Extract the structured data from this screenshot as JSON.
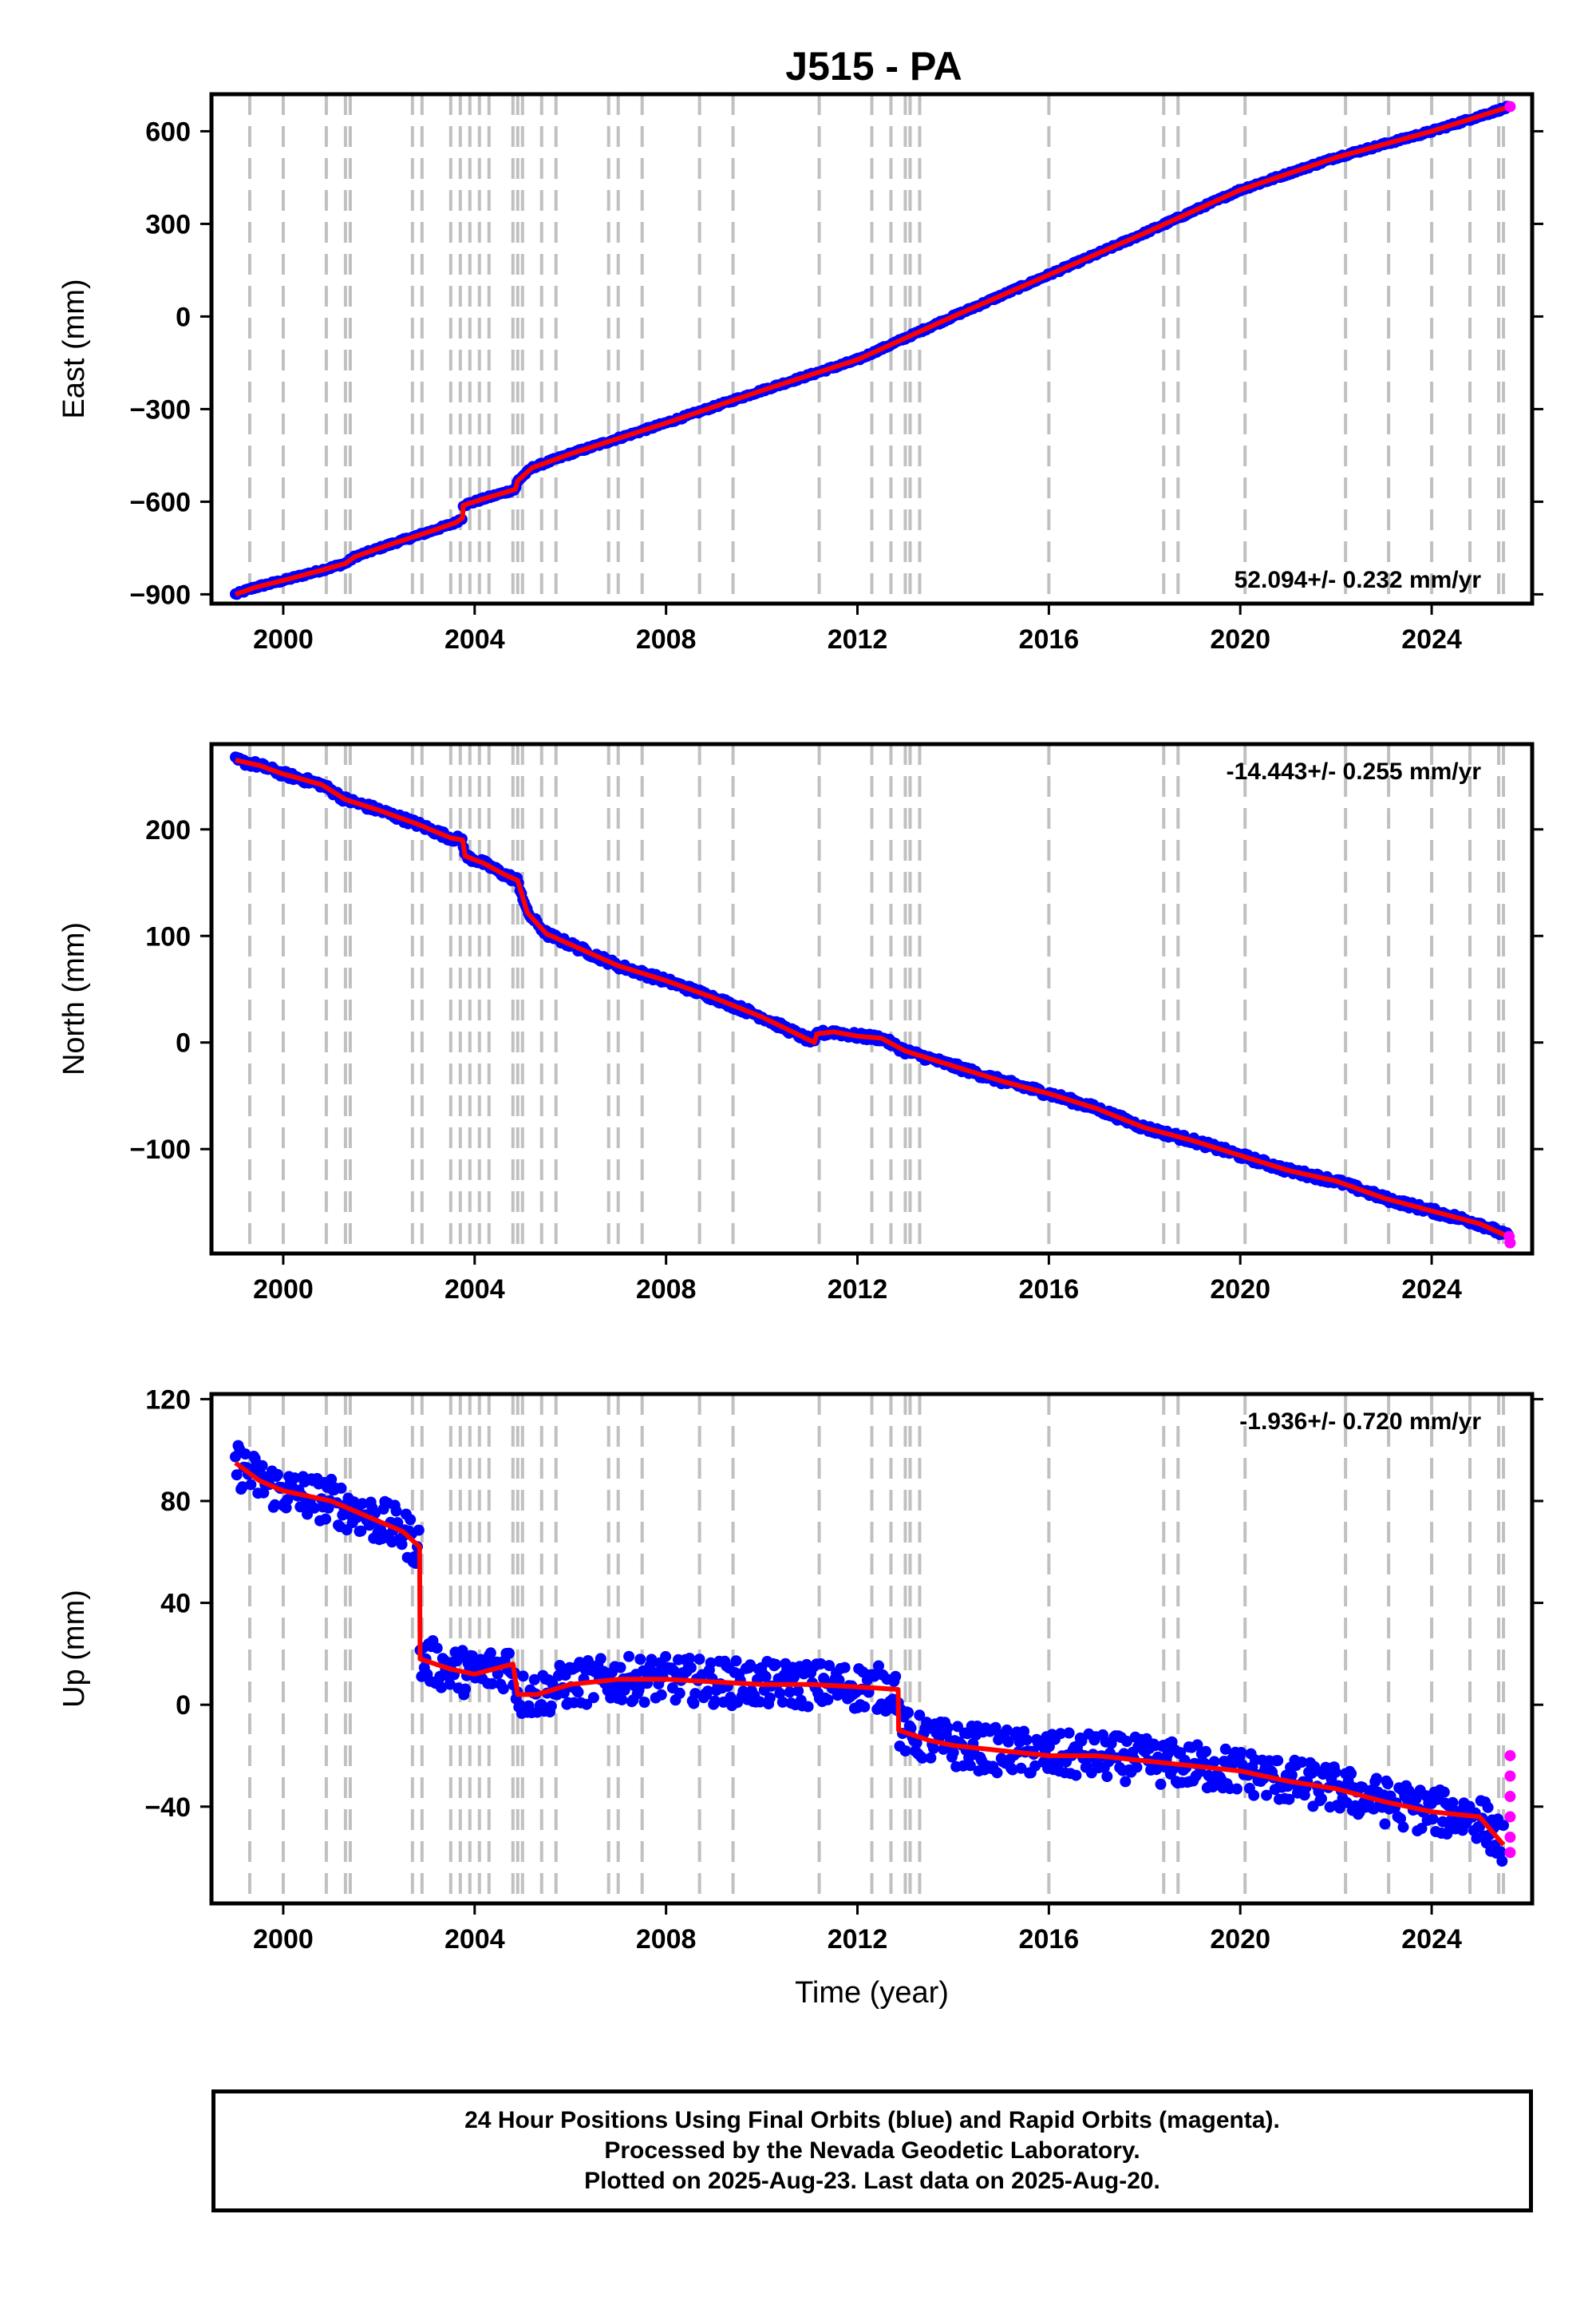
{
  "title": "J515 - PA",
  "footer": {
    "line1": "24 Hour Positions Using Final Orbits (blue) and Rapid Orbits (magenta).",
    "line2": "Processed by the Nevada Geodetic Laboratory.",
    "line3": "Plotted on 2025-Aug-23. Last data on 2025-Aug-20."
  },
  "colors": {
    "final": "#0000ff",
    "rapid": "#ff00ff",
    "model": "#ff0000",
    "event_lines": "#c0c0c0"
  },
  "chart_data": [
    {
      "type": "scatter",
      "panel": "east",
      "title": "J515 - PA",
      "xlabel": "",
      "ylabel": "East (mm)",
      "xlim": [
        1998.5,
        2026.1
      ],
      "ylim": [
        -930,
        720
      ],
      "xticks": [
        2000,
        2004,
        2008,
        2012,
        2016,
        2020,
        2024
      ],
      "yticks": [
        600,
        300,
        0,
        -300,
        -600,
        -900
      ],
      "rate_text": "52.094+/- 0.232 mm/yr",
      "rate_position": "bottom-right",
      "noise": 4,
      "series": [
        {
          "role": "final",
          "x": [
            1999.0,
            1999.4,
            2000.0,
            2000.8,
            2001.3,
            2001.5,
            2002.3,
            2003.0,
            2003.6,
            2003.75,
            2003.76,
            2004.2,
            2004.85,
            2004.9,
            2005.2,
            2006.0,
            2008.0,
            2010.0,
            2012.0,
            2014.0,
            2016.0,
            2018.0,
            2020.0,
            2022.0,
            2024.0,
            2025.6
          ],
          "y": [
            -900,
            -878,
            -855,
            -822,
            -800,
            -778,
            -735,
            -700,
            -668,
            -652,
            -612,
            -590,
            -560,
            -532,
            -490,
            -445,
            -345,
            -240,
            -140,
            0,
            135,
            270,
            410,
            515,
            600,
            678
          ]
        },
        {
          "role": "rapid",
          "x": [
            2025.64
          ],
          "y": [
            680
          ]
        }
      ]
    },
    {
      "type": "scatter",
      "panel": "north",
      "title": "",
      "xlabel": "",
      "ylabel": "North (mm)",
      "xlim": [
        1998.5,
        2026.1
      ],
      "ylim": [
        -198,
        280
      ],
      "xticks": [
        2000,
        2004,
        2008,
        2012,
        2016,
        2020,
        2024
      ],
      "yticks": [
        200,
        100,
        0,
        -100
      ],
      "rate_text": "-14.443+/- 0.255 mm/yr",
      "rate_position": "top-right",
      "noise": 3,
      "series": [
        {
          "role": "final",
          "x": [
            1999.0,
            1999.5,
            2000.0,
            2000.8,
            2001.3,
            2002.0,
            2002.8,
            2003.5,
            2003.75,
            2003.8,
            2004.2,
            2004.6,
            2004.9,
            2005.1,
            2005.5,
            2006.0,
            2007.0,
            2008.0,
            2009.0,
            2010.0,
            2011.1,
            2011.15,
            2011.5,
            2012.0,
            2012.5,
            2013.0,
            2014.0,
            2015.0,
            2016.0,
            2017.0,
            2018.0,
            2019.0,
            2020.0,
            2021.0,
            2022.0,
            2023.0,
            2024.0,
            2025.0,
            2025.6
          ],
          "y": [
            265,
            260,
            252,
            242,
            228,
            218,
            205,
            192,
            190,
            175,
            168,
            158,
            152,
            122,
            102,
            92,
            72,
            58,
            42,
            24,
            0,
            8,
            10,
            6,
            4,
            -8,
            -22,
            -36,
            -48,
            -62,
            -80,
            -92,
            -106,
            -120,
            -130,
            -146,
            -158,
            -170,
            -182
          ]
        },
        {
          "role": "rapid",
          "x": [
            2025.62,
            2025.64
          ],
          "y": [
            -182,
            -188
          ]
        }
      ]
    },
    {
      "type": "scatter",
      "panel": "up",
      "title": "",
      "xlabel": "Time (year)",
      "ylabel": "Up (mm)",
      "xlim": [
        1998.5,
        2026.1
      ],
      "ylim": [
        -78,
        122
      ],
      "xticks": [
        2000,
        2004,
        2008,
        2012,
        2016,
        2020,
        2024
      ],
      "yticks": [
        120,
        80,
        40,
        0,
        -40
      ],
      "rate_text": "-1.936+/- 0.720 mm/yr",
      "rate_position": "top-right",
      "noise": 9,
      "series": [
        {
          "role": "final",
          "x": [
            1999.0,
            1999.5,
            2000.0,
            2000.5,
            2001.0,
            2001.5,
            2002.0,
            2002.5,
            2002.85,
            2002.86,
            2003.5,
            2004.0,
            2004.8,
            2004.9,
            2005.3,
            2006.0,
            2007.0,
            2008.0,
            2009.0,
            2010.0,
            2011.0,
            2012.0,
            2012.85,
            2012.86,
            2013.5,
            2014.0,
            2015.0,
            2016.0,
            2017.0,
            2018.0,
            2019.0,
            2020.0,
            2021.0,
            2022.0,
            2023.0,
            2024.0,
            2025.0,
            2025.5
          ],
          "y": [
            95,
            88,
            84,
            82,
            80,
            76,
            72,
            68,
            62,
            18,
            14,
            12,
            16,
            4,
            4,
            8,
            10,
            10,
            9,
            8,
            8,
            7,
            6,
            -10,
            -14,
            -16,
            -18,
            -20,
            -20,
            -22,
            -24,
            -26,
            -30,
            -33,
            -38,
            -42,
            -44,
            -55
          ]
        },
        {
          "role": "rapid",
          "x": [
            2025.64,
            2025.64,
            2025.64,
            2025.64,
            2025.64,
            2025.64
          ],
          "y": [
            -20,
            -28,
            -36,
            -44,
            -52,
            -58
          ]
        }
      ]
    }
  ],
  "event_lines": [
    1999.3,
    2000.0,
    2000.9,
    2001.3,
    2001.4,
    2002.7,
    2002.9,
    2003.5,
    2003.7,
    2003.9,
    2004.1,
    2004.3,
    2004.8,
    2004.9,
    2005.0,
    2005.4,
    2005.7,
    2006.8,
    2007.0,
    2007.5,
    2008.7,
    2009.4,
    2011.2,
    2012.3,
    2012.7,
    2013.0,
    2013.1,
    2013.3,
    2016.0,
    2018.4,
    2018.7,
    2020.1,
    2022.2,
    2023.1,
    2024.0,
    2024.8,
    2025.4,
    2025.5
  ]
}
